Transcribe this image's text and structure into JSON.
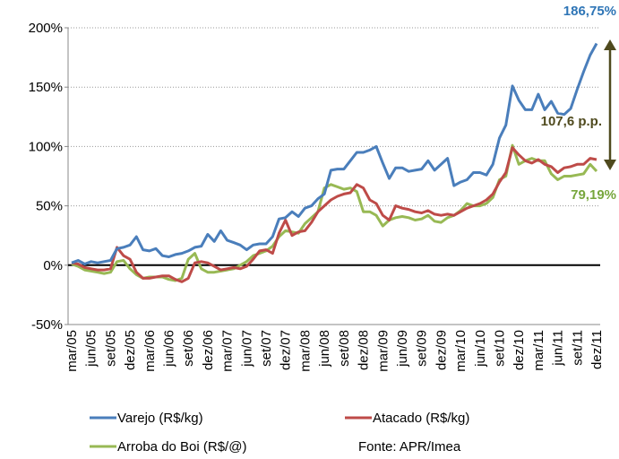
{
  "chart_data": {
    "type": "line",
    "categories": [
      "mar/05",
      null,
      null,
      "jun/05",
      null,
      null,
      "set/05",
      null,
      null,
      "dez/05",
      null,
      null,
      "mar/06",
      null,
      null,
      "jun/06",
      null,
      null,
      "set/06",
      null,
      null,
      "dez/06",
      null,
      null,
      "mar/07",
      null,
      null,
      "jun/07",
      null,
      null,
      "set/07",
      null,
      null,
      "dez/07",
      null,
      null,
      "mar/08",
      null,
      null,
      "jun/08",
      null,
      null,
      "set/08",
      null,
      null,
      "dez/08",
      null,
      null,
      "mar/09",
      null,
      null,
      "jun/09",
      null,
      null,
      "set/09",
      null,
      null,
      "dez/09",
      null,
      null,
      "mar/10",
      null,
      null,
      "jun/10",
      null,
      null,
      "set/10",
      null,
      null,
      "dez/10",
      null,
      null,
      "mar/11",
      null,
      null,
      "jun/11",
      null,
      null,
      "set/11",
      null,
      null,
      "dez/11"
    ],
    "series": [
      {
        "name": "Varejo (R$/kg)",
        "color": "#4a7ebb",
        "values": [
          2,
          4,
          1,
          3,
          2,
          3,
          4,
          14,
          15,
          17,
          24,
          13,
          12,
          14,
          8,
          7,
          9,
          10,
          12,
          15,
          16,
          26,
          20,
          29,
          21,
          19,
          17,
          13,
          17,
          18,
          18,
          24,
          39,
          40,
          45,
          41,
          48,
          50,
          56,
          60,
          80,
          81,
          81,
          88,
          95,
          95,
          97,
          100,
          86,
          73,
          82,
          82,
          79,
          80,
          81,
          88,
          80,
          85,
          90,
          67,
          70,
          72,
          78,
          78,
          76,
          85,
          107,
          118,
          151,
          139,
          131,
          131,
          144,
          131,
          138,
          128,
          127,
          132,
          148,
          163,
          177,
          186.75
        ]
      },
      {
        "name": "Atacado (R$/kg)",
        "color": "#be4b48",
        "values": [
          2,
          1,
          -2,
          -3,
          -4,
          -4,
          -3,
          15,
          8,
          5,
          -6,
          -11,
          -11,
          -10,
          -9,
          -9,
          -12,
          -14,
          -11,
          2,
          3,
          2,
          -1,
          -4,
          -3,
          -2,
          -3,
          -1,
          5,
          12,
          13,
          10,
          27,
          38,
          25,
          28,
          29,
          36,
          45,
          50,
          55,
          58,
          60,
          61,
          68,
          65,
          55,
          52,
          42,
          38,
          50,
          48,
          47,
          45,
          44,
          46,
          43,
          42,
          43,
          42,
          45,
          48,
          50,
          52,
          55,
          60,
          70,
          78,
          99,
          93,
          88,
          86,
          89,
          85,
          83,
          78,
          82,
          83,
          85,
          85,
          90,
          89
        ]
      },
      {
        "name": "Arroba do Boi (R$/@)",
        "color": "#98b954",
        "values": [
          1,
          -1,
          -4,
          -5,
          -6,
          -7,
          -6,
          3,
          4,
          -3,
          -8,
          -11,
          -10,
          -10,
          -10,
          -12,
          -13,
          -11,
          5,
          10,
          -3,
          -6,
          -6,
          -5,
          -4,
          -3,
          0,
          3,
          8,
          10,
          12,
          16,
          24,
          29,
          28,
          27,
          35,
          40,
          45,
          65,
          68,
          66,
          64,
          65,
          62,
          45,
          45,
          42,
          33,
          38,
          40,
          41,
          40,
          38,
          39,
          42,
          37,
          36,
          40,
          42,
          46,
          52,
          50,
          50,
          52,
          57,
          72,
          75,
          101,
          85,
          88,
          90,
          88,
          88,
          77,
          72,
          75,
          75,
          76,
          77,
          85,
          79.19
        ]
      }
    ],
    "ylim": [
      -50,
      200
    ],
    "yticks": [
      {
        "value": -50,
        "label": "-50%"
      },
      {
        "value": 0,
        "label": "0%"
      },
      {
        "value": 50,
        "label": "50%"
      },
      {
        "value": 100,
        "label": "100%"
      },
      {
        "value": 150,
        "label": "150%"
      },
      {
        "value": 200,
        "label": "200%"
      }
    ],
    "grid": true,
    "annotations": [
      "186,75%",
      "107,6 p.p.",
      "79,19%"
    ],
    "source": "Fonte: APR/Imea"
  }
}
